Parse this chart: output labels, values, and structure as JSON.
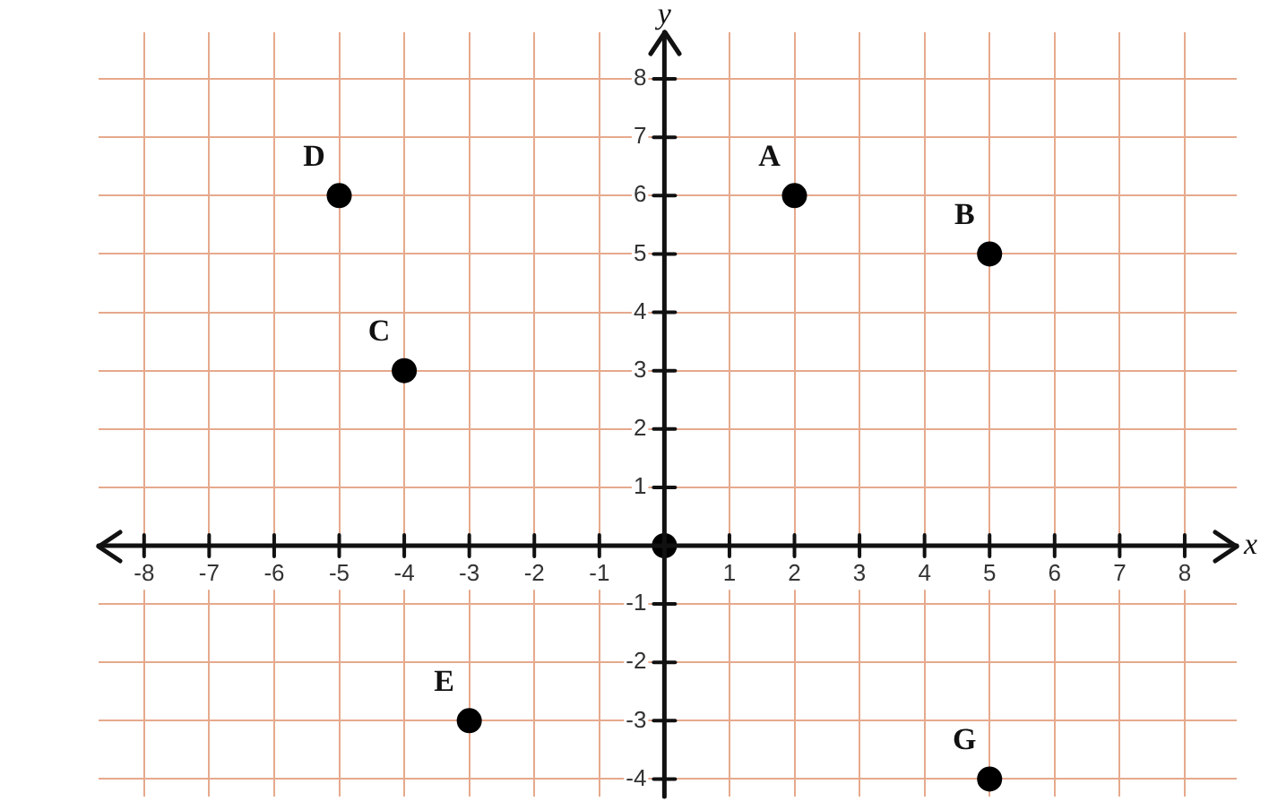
{
  "chart_data": {
    "type": "scatter",
    "xlabel": "x",
    "ylabel": "y",
    "series": [
      {
        "color": "#000000",
        "x": [
          2,
          5,
          -4,
          -5,
          -3,
          5,
          0
        ],
        "values": [
          6,
          5,
          3,
          6,
          -3,
          -4,
          0
        ]
      }
    ],
    "annotations": [
      {
        "text": "A",
        "x": 2,
        "y": 6
      },
      {
        "text": "B",
        "x": 5,
        "y": 5
      },
      {
        "text": "C",
        "x": -4,
        "y": 3
      },
      {
        "text": "D",
        "x": -5,
        "y": 6
      },
      {
        "text": "E",
        "x": -3,
        "y": -3
      },
      {
        "text": "G",
        "x": 5,
        "y": -4
      }
    ],
    "xlim": [
      -8.7,
      8.8
    ],
    "ylim": [
      -4.3,
      8.8
    ],
    "xticks": [
      -8,
      -7,
      -6,
      -5,
      -4,
      -3,
      -2,
      -1,
      1,
      2,
      3,
      4,
      5,
      6,
      7,
      8
    ],
    "yticks": [
      -4,
      -3,
      -2,
      -1,
      1,
      2,
      3,
      4,
      5,
      6,
      7,
      8
    ],
    "grid": true,
    "legend": false,
    "marker": "circle"
  }
}
